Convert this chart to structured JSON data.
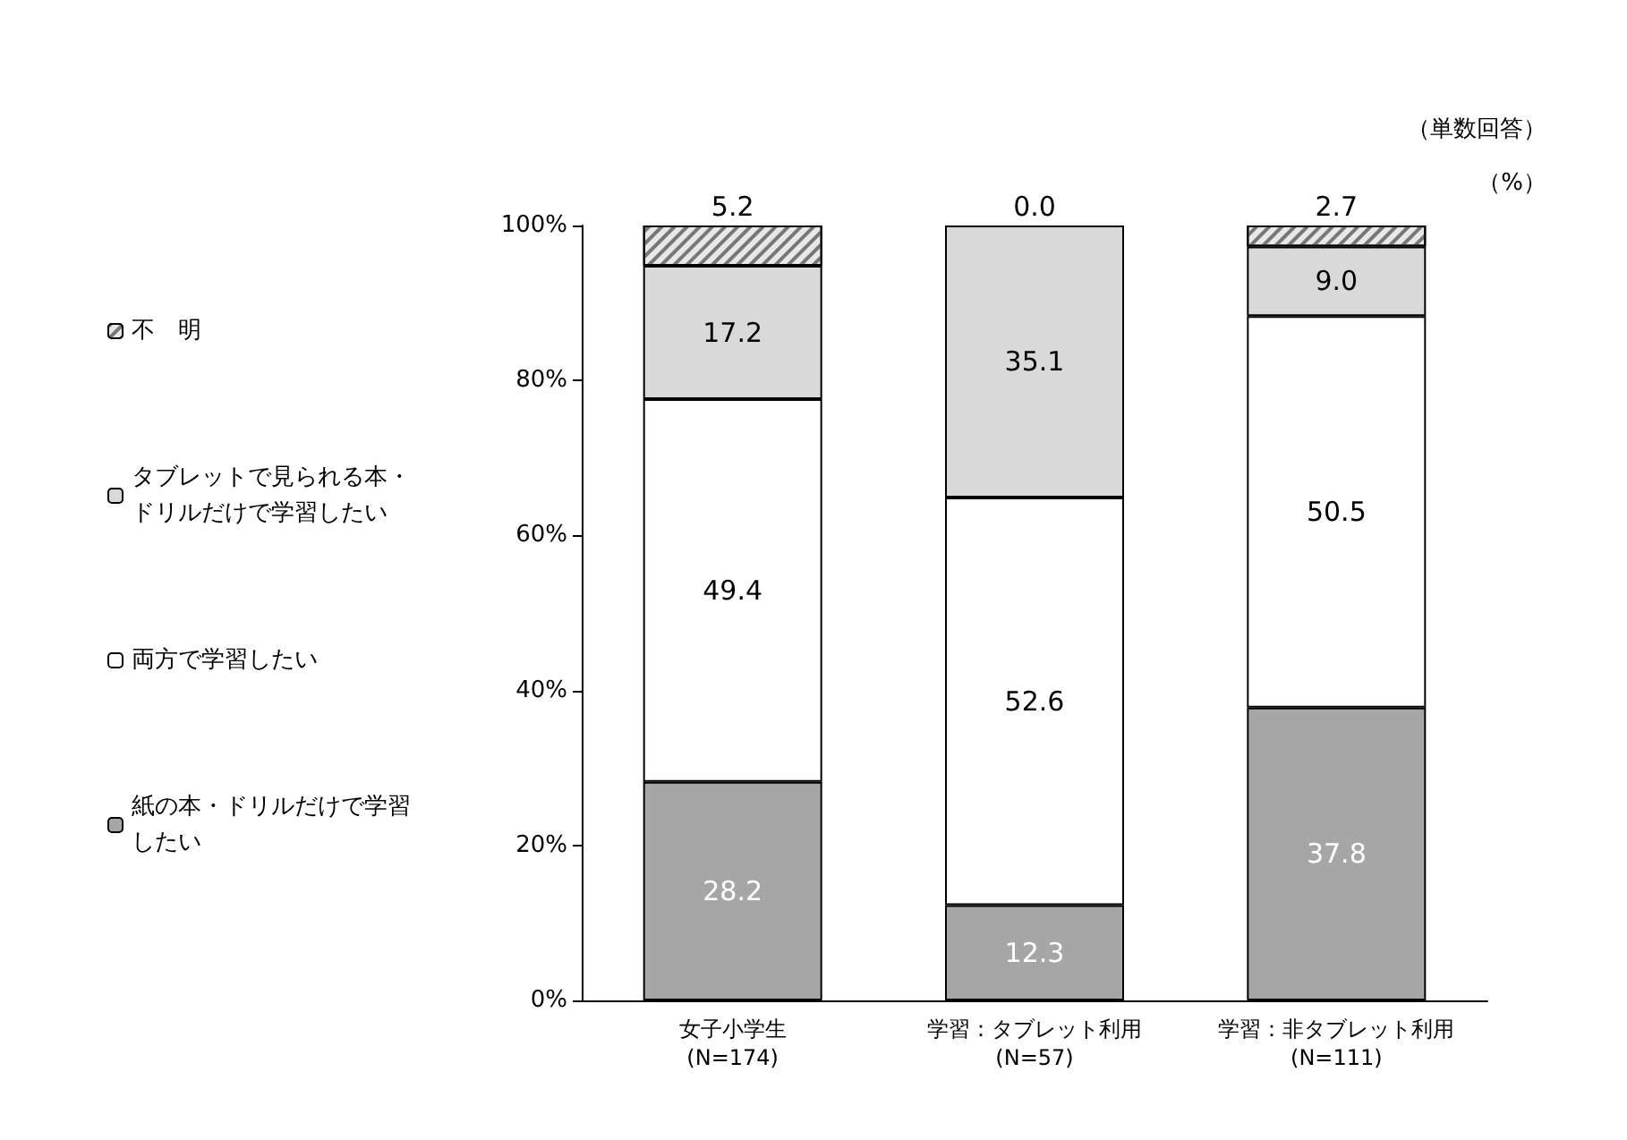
{
  "chart_data": {
    "type": "bar",
    "stacked": true,
    "grid": false,
    "legend": "left",
    "categories": [
      "女子小学生\n(N=174)",
      "学習：タブレット利用\n(N=57)",
      "学習：非タブレット利用\n(N=111)"
    ],
    "series": [
      {
        "name": "紙の本・ドリルだけで学習したい",
        "color": "#a6a6a6",
        "values": [
          28.2,
          12.3,
          37.8
        ],
        "value_labels": [
          "28.2",
          "12.3",
          "37.8"
        ]
      },
      {
        "name": "両方で学習したい",
        "color": "#ffffff",
        "values": [
          49.4,
          52.6,
          50.5
        ],
        "value_labels": [
          "49.4",
          "52.6",
          "50.5"
        ]
      },
      {
        "name": "タブレットで見られる本・ドリルだけで学習したい",
        "color": "#d9d9d9",
        "values": [
          17.2,
          35.1,
          9.0
        ],
        "value_labels": [
          "17.2",
          "35.1",
          "9.0"
        ]
      },
      {
        "name": "不　明",
        "color": "#e8e8e8",
        "values": [
          5.2,
          0.0,
          2.7
        ],
        "value_labels": [
          "5.2",
          "0.0",
          "2.7"
        ]
      }
    ],
    "ylim": [
      0,
      100
    ],
    "yticks": [
      {
        "value": 0,
        "label": "0%"
      },
      {
        "value": 20,
        "label": "20%"
      },
      {
        "value": 40,
        "label": "40%"
      },
      {
        "value": 60,
        "label": "60%"
      },
      {
        "value": 80,
        "label": "80%"
      },
      {
        "value": 100,
        "label": "100%"
      }
    ],
    "annotations": [
      "（単数回答）",
      "（%）"
    ]
  }
}
